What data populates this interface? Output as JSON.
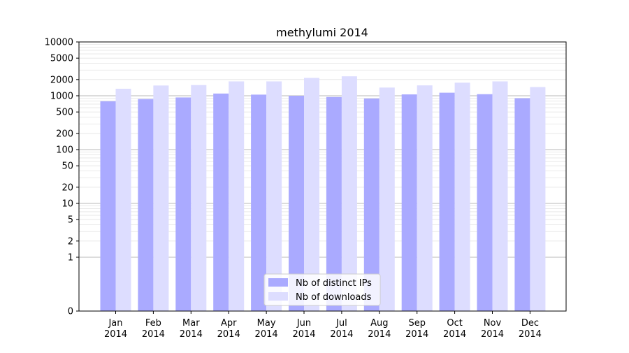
{
  "chart_data": {
    "type": "bar",
    "title": "methylumi 2014",
    "xlabel": "",
    "ylabel": "",
    "y_scale": "symlog",
    "ylim": [
      0,
      10000
    ],
    "y_ticks": [
      0,
      1,
      2,
      5,
      10,
      20,
      50,
      100,
      200,
      500,
      1000,
      2000,
      5000,
      10000
    ],
    "y_tick_labels": [
      "0",
      "1",
      "2",
      "5",
      "10",
      "20",
      "50",
      "100",
      "200",
      "500",
      "1000",
      "2000",
      "5000",
      "10000"
    ],
    "grid": true,
    "legend_position": "lower-center",
    "categories": [
      "Jan\n2014",
      "Feb\n2014",
      "Mar\n2014",
      "Apr\n2014",
      "May\n2014",
      "Jun\n2014",
      "Jul\n2014",
      "Aug\n2014",
      "Sep\n2014",
      "Oct\n2014",
      "Nov\n2014",
      "Dec\n2014"
    ],
    "series": [
      {
        "name": "Nb of distinct IPs",
        "color": "#aaaaff",
        "values": [
          790,
          870,
          930,
          1100,
          1050,
          1000,
          950,
          890,
          1060,
          1140,
          1070,
          900
        ]
      },
      {
        "name": "Nb of downloads",
        "color": "#ddddff",
        "values": [
          1350,
          1550,
          1580,
          1850,
          1850,
          2150,
          2300,
          1420,
          1560,
          1750,
          1850,
          1450
        ]
      }
    ]
  }
}
